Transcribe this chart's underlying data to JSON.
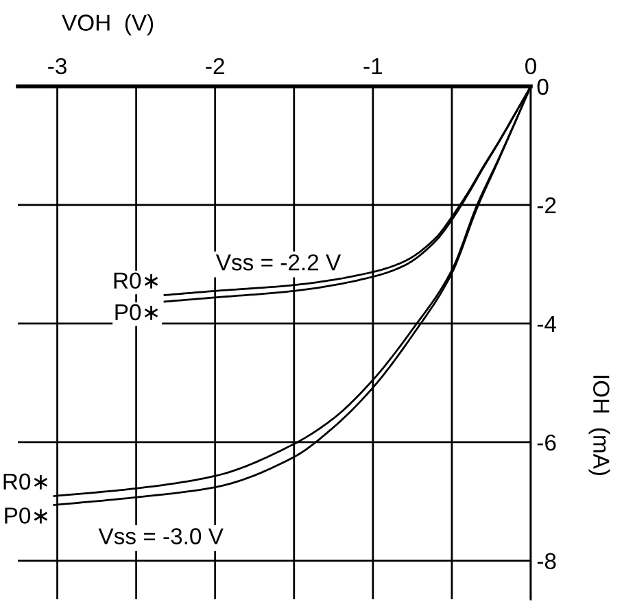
{
  "chart_data": {
    "type": "line",
    "xlabel": "VOH  (V)",
    "ylabel": "IOH  (mA)",
    "xlim": [
      -3.25,
      0
    ],
    "ylim": [
      -8.65,
      0
    ],
    "xticks": [
      -3,
      {
        "value": -2.5,
        "label": null
      },
      -2,
      {
        "value": -1.5,
        "label": null
      },
      -1,
      {
        "value": -0.5,
        "label": null
      },
      0
    ],
    "yticks": [
      -8,
      -6,
      -4,
      -2,
      0
    ],
    "grid": true,
    "marker": "none",
    "line_style": "solid",
    "series": [
      {
        "name": "R0∗",
        "color": "#000000",
        "x": [
          -2.32,
          -2.0,
          -1.5,
          -1.0,
          -0.8,
          -0.6,
          -0.5,
          -0.4,
          -0.3,
          -0.2,
          -0.1,
          0
        ],
        "values": [
          -3.52,
          -3.45,
          -3.35,
          -3.13,
          -2.95,
          -2.55,
          -2.2,
          -1.8,
          -1.35,
          -0.92,
          -0.46,
          0
        ]
      },
      {
        "name": "P0∗",
        "color": "#000000",
        "x": [
          -2.32,
          -2.0,
          -1.5,
          -1.0,
          -0.8,
          -0.6,
          -0.5,
          -0.4,
          -0.3,
          -0.2,
          -0.1,
          0
        ],
        "values": [
          -3.63,
          -3.56,
          -3.45,
          -3.21,
          -3.02,
          -2.6,
          -2.25,
          -1.83,
          -1.37,
          -0.93,
          -0.47,
          0
        ]
      },
      {
        "name": "R0∗",
        "color": "#000000",
        "x": [
          -3.02,
          -2.5,
          -2.0,
          -1.5,
          -1.25,
          -1.0,
          -0.75,
          -0.5,
          -0.34,
          -0.2,
          0
        ],
        "values": [
          -6.91,
          -6.78,
          -6.57,
          -6.03,
          -5.6,
          -4.95,
          -4.1,
          -3.1,
          -2.0,
          -1.2,
          0
        ]
      },
      {
        "name": "P0∗",
        "color": "#000000",
        "x": [
          -3.02,
          -2.5,
          -2.0,
          -1.5,
          -1.25,
          -1.0,
          -0.75,
          -0.5,
          -0.34,
          -0.2,
          0
        ],
        "values": [
          -7.06,
          -6.93,
          -6.76,
          -6.25,
          -5.75,
          -5.08,
          -4.2,
          -3.15,
          -2.05,
          -1.22,
          0
        ]
      }
    ],
    "annotations": [
      "Vss = -2.2 V",
      "Vss = -3.0 V"
    ]
  }
}
